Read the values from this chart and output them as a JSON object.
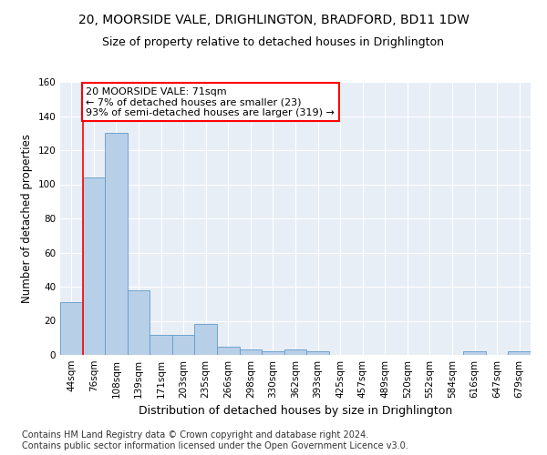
{
  "title": "20, MOORSIDE VALE, DRIGHLINGTON, BRADFORD, BD11 1DW",
  "subtitle": "Size of property relative to detached houses in Drighlington",
  "xlabel": "Distribution of detached houses by size in Drighlington",
  "ylabel": "Number of detached properties",
  "categories": [
    "44sqm",
    "76sqm",
    "108sqm",
    "139sqm",
    "171sqm",
    "203sqm",
    "235sqm",
    "266sqm",
    "298sqm",
    "330sqm",
    "362sqm",
    "393sqm",
    "425sqm",
    "457sqm",
    "489sqm",
    "520sqm",
    "552sqm",
    "584sqm",
    "616sqm",
    "647sqm",
    "679sqm"
  ],
  "values": [
    31,
    104,
    130,
    38,
    12,
    12,
    18,
    5,
    3,
    2,
    3,
    2,
    0,
    0,
    0,
    0,
    0,
    0,
    2,
    0,
    2
  ],
  "bar_color": "#b8cfe8",
  "bar_edge_color": "#5f9bca",
  "vline_x_idx": 1,
  "annotation_text": "20 MOORSIDE VALE: 71sqm\n← 7% of detached houses are smaller (23)\n93% of semi-detached houses are larger (319) →",
  "annotation_box_color": "white",
  "annotation_box_edge_color": "red",
  "vline_color": "red",
  "ylim": [
    0,
    160
  ],
  "yticks": [
    0,
    20,
    40,
    60,
    80,
    100,
    120,
    140,
    160
  ],
  "background_color": "#e8eef6",
  "grid_color": "white",
  "footer": "Contains HM Land Registry data © Crown copyright and database right 2024.\nContains public sector information licensed under the Open Government Licence v3.0.",
  "title_fontsize": 10,
  "subtitle_fontsize": 9,
  "xlabel_fontsize": 9,
  "ylabel_fontsize": 8.5,
  "tick_fontsize": 7.5,
  "footer_fontsize": 7,
  "annotation_fontsize": 8
}
